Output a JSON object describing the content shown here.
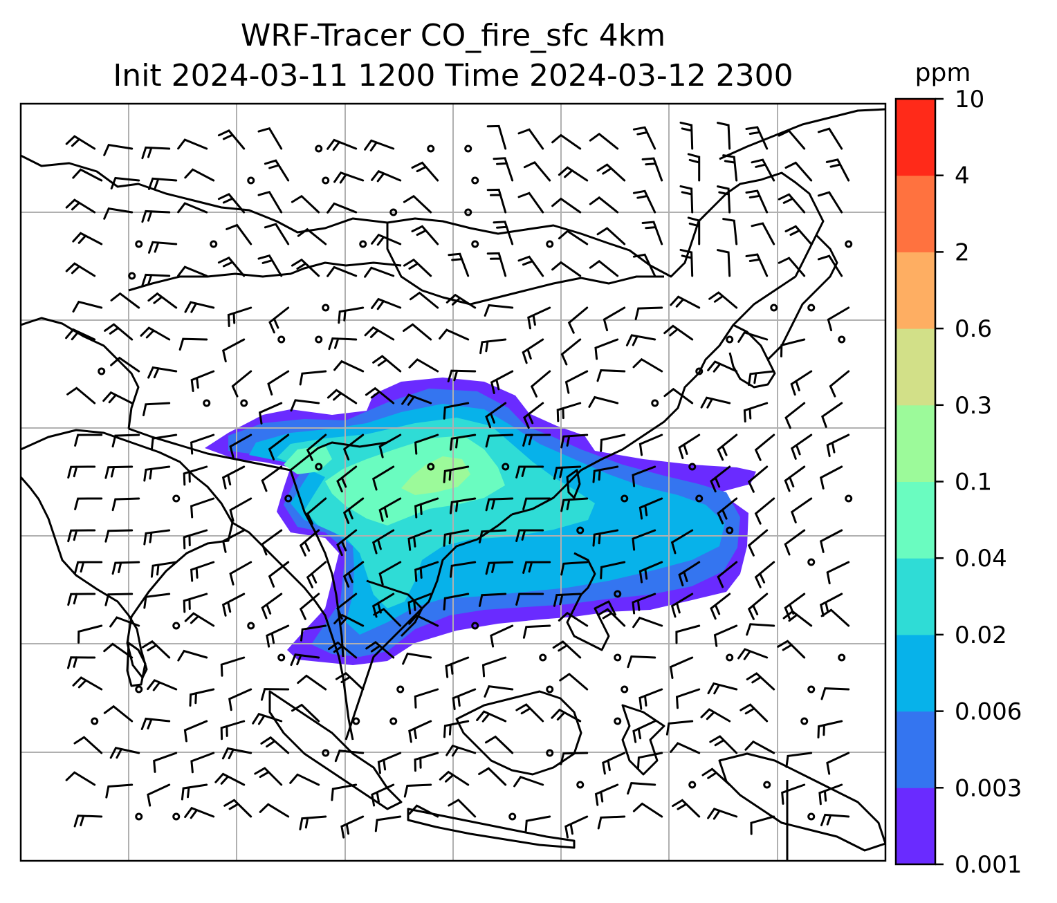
{
  "title": {
    "line1": "WRF-Tracer CO_fire_sfc 4km",
    "line2": "Init 2024-03-11 1200 Time 2024-03-12 2300"
  },
  "colorbar": {
    "unit": "ppm",
    "levels": [
      "0.001",
      "0.003",
      "0.006",
      "0.02",
      "0.04",
      "0.1",
      "0.3",
      "0.6",
      "2",
      "4",
      "10"
    ],
    "colors": [
      "#6a2bff",
      "#3475f0",
      "#07b2ea",
      "#2fdcd6",
      "#6afcc0",
      "#9cfa9a",
      "#d2e088",
      "#feae62",
      "#ff723f",
      "#ff2a19"
    ]
  },
  "map": {
    "gridlines": true,
    "plume_colors": {
      "lowest": "#6a2bff",
      "low": "#3475f0",
      "mid": "#07b2ea",
      "midhigh": "#2fdcd6",
      "high": "#6afcc0",
      "highest": "#9cfa9a"
    },
    "overlay": "wind-barbs"
  }
}
